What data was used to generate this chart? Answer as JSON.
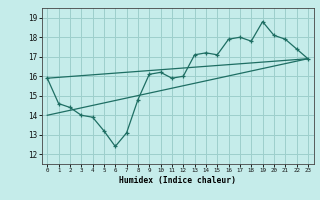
{
  "title": "",
  "xlabel": "Humidex (Indice chaleur)",
  "xlim": [
    -0.5,
    23.5
  ],
  "ylim": [
    11.5,
    19.5
  ],
  "xticks": [
    0,
    1,
    2,
    3,
    4,
    5,
    6,
    7,
    8,
    9,
    10,
    11,
    12,
    13,
    14,
    15,
    16,
    17,
    18,
    19,
    20,
    21,
    22,
    23
  ],
  "yticks": [
    12,
    13,
    14,
    15,
    16,
    17,
    18,
    19
  ],
  "bg_color": "#c5ecea",
  "grid_color": "#9dcfcc",
  "line_color": "#1e6e63",
  "line1_x": [
    0,
    1,
    2,
    3,
    4,
    5,
    6,
    7,
    8,
    9,
    10,
    11,
    12,
    13,
    14,
    15,
    16,
    17,
    18,
    19,
    20,
    21,
    22,
    23
  ],
  "line1_y": [
    15.9,
    14.6,
    14.4,
    14.0,
    13.9,
    13.2,
    12.4,
    13.1,
    14.8,
    16.1,
    16.2,
    15.9,
    16.0,
    17.1,
    17.2,
    17.1,
    17.9,
    18.0,
    17.8,
    18.8,
    18.1,
    17.9,
    17.4,
    16.9
  ],
  "lower_line_x": [
    0,
    23
  ],
  "lower_line_y": [
    14.0,
    16.9
  ],
  "upper_line_x": [
    0,
    23
  ],
  "upper_line_y": [
    15.9,
    16.9
  ]
}
